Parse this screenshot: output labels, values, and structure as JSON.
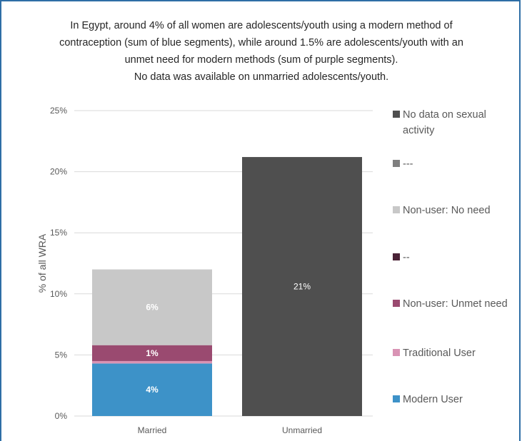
{
  "chart_data": {
    "type": "bar",
    "stacked": true,
    "title_lines": [
      "In Egypt, around 4% of all women are adolescents/youth using a modern method of",
      "contraception (sum of blue segments), while around 1.5% are adolescents/youth with an",
      "unmet need for modern methods (sum of purple segments).",
      "No data was available on unmarried adolescents/youth."
    ],
    "ylabel": "% of all WRA",
    "ylim": [
      0,
      25
    ],
    "yticks": [
      0,
      5,
      10,
      15,
      20,
      25
    ],
    "ytick_labels": [
      "0%",
      "5%",
      "10%",
      "15%",
      "20%",
      "25%"
    ],
    "categories": [
      "Married",
      "Unmarried"
    ],
    "grid": true,
    "legend_position": "right",
    "series": [
      {
        "name": "Modern User",
        "color": "#3d92c8",
        "values": [
          4.3,
          0
        ],
        "labels": [
          "4%",
          ""
        ]
      },
      {
        "name": "Traditional User",
        "color": "#d993b4",
        "values": [
          0.2,
          0
        ],
        "labels": [
          "",
          ""
        ]
      },
      {
        "name": "Non-user: Unmet need",
        "color": "#9a4a70",
        "values": [
          1.3,
          0
        ],
        "labels": [
          "1%",
          ""
        ]
      },
      {
        "name": "--",
        "color": "#4a2236",
        "values": [
          0,
          0
        ],
        "labels": [
          "",
          ""
        ]
      },
      {
        "name": "Non-user: No need",
        "color": "#c8c8c8",
        "values": [
          6.2,
          0
        ],
        "labels": [
          "6%",
          ""
        ]
      },
      {
        "name": "---",
        "color": "#7f7f7f",
        "values": [
          0,
          0
        ],
        "labels": [
          "",
          ""
        ]
      },
      {
        "name": "No data on sexual activity",
        "color": "#4f4f4f",
        "values": [
          0,
          21.2
        ],
        "labels": [
          "",
          "21%"
        ]
      }
    ]
  }
}
